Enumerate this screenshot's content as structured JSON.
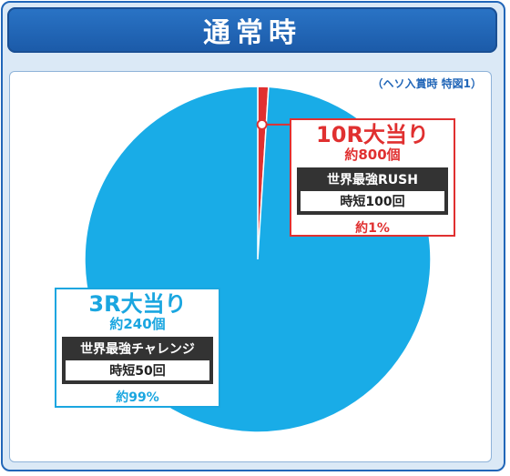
{
  "header": {
    "title": "通常時"
  },
  "note": "（ヘソ入賞時 特図1）",
  "chart_data": {
    "type": "pie",
    "slices": [
      {
        "label": "10R大当り",
        "value": 1,
        "color": "#e03030",
        "award": "約800個",
        "mode": "世界最強RUSH",
        "jitan": "時短100回",
        "rate": "約1%"
      },
      {
        "label": "3R大当り",
        "value": 99,
        "color": "#19ace7",
        "award": "約240個",
        "mode": "世界最強チャレンジ",
        "jitan": "時短50回",
        "rate": "約99%"
      }
    ]
  },
  "colors": {
    "accent": "#2166b8",
    "border": "#2166b8"
  }
}
